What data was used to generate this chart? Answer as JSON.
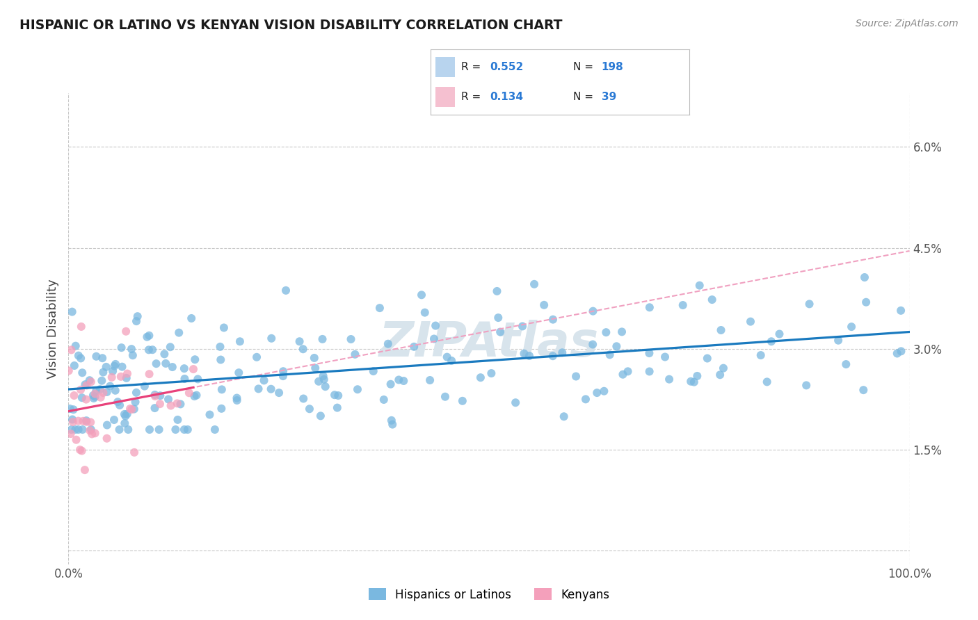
{
  "title": "HISPANIC OR LATINO VS KENYAN VISION DISABILITY CORRELATION CHART",
  "source": "Source: ZipAtlas.com",
  "ylabel": "Vision Disability",
  "xlim": [
    0,
    100
  ],
  "ylim": [
    -0.2,
    6.8
  ],
  "yticks": [
    0.0,
    1.5,
    3.0,
    4.5,
    6.0
  ],
  "ytick_labels": [
    "",
    "1.5%",
    "3.0%",
    "4.5%",
    "6.0%"
  ],
  "xtick_labels": [
    "0.0%",
    "100.0%"
  ],
  "legend_label1": "Hispanics or Latinos",
  "legend_label2": "Kenyans",
  "blue_color": "#7ab8e0",
  "pink_color": "#f4a0bb",
  "blue_line_color": "#1a7abf",
  "pink_line_color": "#e8417a",
  "pink_dashed_color": "#f0a0c0",
  "blue_fill": "#b8d4ee",
  "pink_fill": "#f5c0d0",
  "background_color": "#ffffff",
  "grid_color": "#c8c8c8",
  "r_n_color": "#2979d4",
  "watermark_color": "#d8e4ec",
  "n_blue": 198,
  "n_pink": 39,
  "blue_seed": 15,
  "pink_seed": 88
}
